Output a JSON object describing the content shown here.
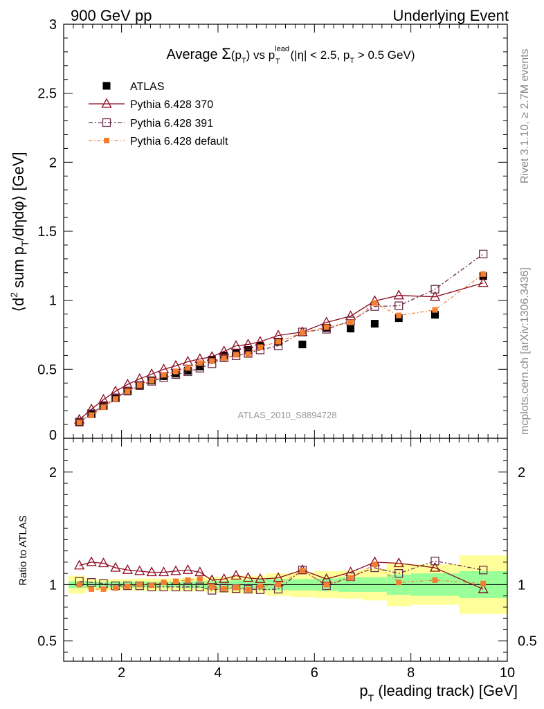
{
  "header": {
    "left": "900 GeV pp",
    "right": "Underlying Event"
  },
  "side_labels": {
    "rivet": "Rivet 3.1.10, ≥ 2.7M events",
    "mcplots": "mcplots.cern.ch [arXiv:1306.3436]"
  },
  "watermark": "ATLAS_2010_S8894728",
  "title": {
    "text": "Average Σ(p_T) vs p_T^lead (|η| < 2.5, p_T > 0.5 GeV)"
  },
  "labels": {
    "ylabel_main": "⟨d² sum p_T/dηdφ⟩ [GeV]",
    "ylabel_ratio": "Ratio to ATLAS",
    "xlabel": "p_T (leading track) [GeV]"
  },
  "colors": {
    "atlas": "#000000",
    "p370": "#8b0a1f",
    "p391": "#6b2b47",
    "pdef": "#f47f30",
    "band_inner": "#99ff99",
    "band_outer": "#ffff99"
  },
  "chart_data": [
    {
      "type": "line",
      "panel": "main",
      "x": [
        1.125,
        1.375,
        1.625,
        1.875,
        2.125,
        2.375,
        2.625,
        2.875,
        3.125,
        3.375,
        3.625,
        3.875,
        4.125,
        4.375,
        4.625,
        4.875,
        5.25,
        5.75,
        6.25,
        6.75,
        7.25,
        7.75,
        8.5,
        9.5
      ],
      "xlim": [
        0.8,
        10.0
      ],
      "ylim": [
        0,
        3
      ],
      "yticks": [
        0.5,
        1,
        1.5,
        2,
        2.5,
        3
      ],
      "ytick_labels": [
        "0.5",
        "1",
        "1.5",
        "2",
        "2.5",
        "3"
      ],
      "legend_position": "top-left",
      "series": [
        {
          "name": "ATLAS",
          "key": "atlas",
          "marker": "filled-square",
          "values": [
            0.115,
            0.175,
            0.235,
            0.295,
            0.345,
            0.385,
            0.42,
            0.45,
            0.47,
            0.49,
            0.52,
            0.57,
            0.6,
            0.62,
            0.64,
            0.67,
            0.7,
            0.68,
            0.8,
            0.795,
            0.83,
            0.87,
            0.895,
            1.175
          ]
        },
        {
          "name": "Pythia 6.428 370",
          "key": "p370",
          "marker": "open-triangle",
          "values": [
            0.135,
            0.21,
            0.28,
            0.34,
            0.39,
            0.43,
            0.465,
            0.5,
            0.525,
            0.555,
            0.575,
            0.59,
            0.63,
            0.67,
            0.68,
            0.7,
            0.745,
            0.77,
            0.84,
            0.885,
            0.995,
            1.035,
            1.025,
            1.125
          ]
        },
        {
          "name": "Pythia 6.428 391",
          "key": "p391",
          "marker": "open-square",
          "values": [
            0.118,
            0.178,
            0.237,
            0.293,
            0.342,
            0.382,
            0.413,
            0.44,
            0.462,
            0.482,
            0.508,
            0.54,
            0.583,
            0.598,
            0.615,
            0.64,
            0.67,
            0.77,
            0.79,
            0.85,
            0.955,
            0.96,
            1.08,
            1.335
          ]
        },
        {
          "name": "Pythia 6.428 default",
          "key": "pdef",
          "marker": "small-filled-square",
          "values": [
            0.115,
            0.168,
            0.225,
            0.285,
            0.34,
            0.385,
            0.418,
            0.46,
            0.485,
            0.51,
            0.545,
            0.56,
            0.58,
            0.605,
            0.61,
            0.66,
            0.7,
            0.765,
            0.805,
            0.84,
            0.98,
            0.89,
            0.93,
            1.19
          ]
        }
      ]
    },
    {
      "type": "line",
      "panel": "ratio",
      "x": [
        1.125,
        1.375,
        1.625,
        1.875,
        2.125,
        2.375,
        2.625,
        2.875,
        3.125,
        3.375,
        3.625,
        3.875,
        4.125,
        4.375,
        4.625,
        4.875,
        5.25,
        5.75,
        6.25,
        6.75,
        7.25,
        7.75,
        8.5,
        9.5
      ],
      "xlim": [
        0.8,
        10.0
      ],
      "xticks": [
        2,
        4,
        6,
        8,
        10
      ],
      "xtick_labels": [
        "2",
        "4",
        "6",
        "8",
        "10"
      ],
      "ylim": [
        0.32,
        2.3
      ],
      "yticks": [
        0.5,
        1,
        2
      ],
      "ytick_labels": [
        "0.5",
        "1",
        "2"
      ],
      "bands": {
        "edges": [
          0.9,
          1.25,
          1.5,
          1.75,
          2.0,
          2.25,
          2.5,
          2.75,
          3.0,
          3.25,
          3.5,
          3.75,
          4.0,
          4.25,
          4.5,
          4.75,
          5.0,
          5.5,
          6.0,
          6.5,
          7.0,
          7.5,
          8.0,
          9.0,
          10.0
        ],
        "inner_low": [
          0.97,
          0.975,
          0.975,
          0.975,
          0.975,
          0.975,
          0.975,
          0.975,
          0.975,
          0.97,
          0.97,
          0.965,
          0.965,
          0.96,
          0.955,
          0.955,
          0.95,
          0.95,
          0.945,
          0.935,
          0.935,
          0.91,
          0.9,
          0.88
        ],
        "inner_high": [
          1.03,
          1.025,
          1.025,
          1.025,
          1.025,
          1.025,
          1.025,
          1.025,
          1.025,
          1.03,
          1.03,
          1.035,
          1.035,
          1.04,
          1.045,
          1.045,
          1.05,
          1.05,
          1.055,
          1.065,
          1.065,
          1.09,
          1.1,
          1.12
        ],
        "outer_low": [
          0.92,
          0.95,
          0.95,
          0.95,
          0.95,
          0.945,
          0.945,
          0.945,
          0.945,
          0.94,
          0.94,
          0.93,
          0.93,
          0.92,
          0.92,
          0.92,
          0.9,
          0.89,
          0.88,
          0.875,
          0.86,
          0.81,
          0.82,
          0.74
        ],
        "outer_high": [
          1.08,
          1.05,
          1.05,
          1.05,
          1.05,
          1.055,
          1.055,
          1.055,
          1.055,
          1.06,
          1.06,
          1.07,
          1.07,
          1.08,
          1.08,
          1.08,
          1.1,
          1.11,
          1.12,
          1.125,
          1.14,
          1.19,
          1.18,
          1.26
        ]
      },
      "series": [
        {
          "name": "Pythia 6.428 370",
          "key": "p370",
          "marker": "open-triangle",
          "values": [
            1.17,
            1.2,
            1.19,
            1.15,
            1.13,
            1.12,
            1.11,
            1.11,
            1.12,
            1.13,
            1.11,
            1.04,
            1.05,
            1.08,
            1.06,
            1.05,
            1.06,
            1.13,
            1.05,
            1.11,
            1.2,
            1.19,
            1.15,
            0.96
          ]
        },
        {
          "name": "Pythia 6.428 391",
          "key": "p391",
          "marker": "open-square",
          "values": [
            1.03,
            1.02,
            1.01,
            0.99,
            0.99,
            0.99,
            0.98,
            0.98,
            0.98,
            0.98,
            0.98,
            0.95,
            0.97,
            0.965,
            0.96,
            0.955,
            0.96,
            1.13,
            0.99,
            1.07,
            1.15,
            1.1,
            1.21,
            1.13
          ]
        },
        {
          "name": "Pythia 6.428 default",
          "key": "pdef",
          "marker": "small-filled-square",
          "values": [
            1.0,
            0.96,
            0.96,
            0.97,
            0.985,
            1.0,
            0.995,
            1.02,
            1.03,
            1.04,
            1.05,
            0.98,
            0.965,
            0.975,
            0.955,
            0.985,
            1.0,
            1.125,
            1.0,
            1.06,
            1.18,
            1.02,
            1.04,
            1.01
          ]
        }
      ]
    }
  ]
}
